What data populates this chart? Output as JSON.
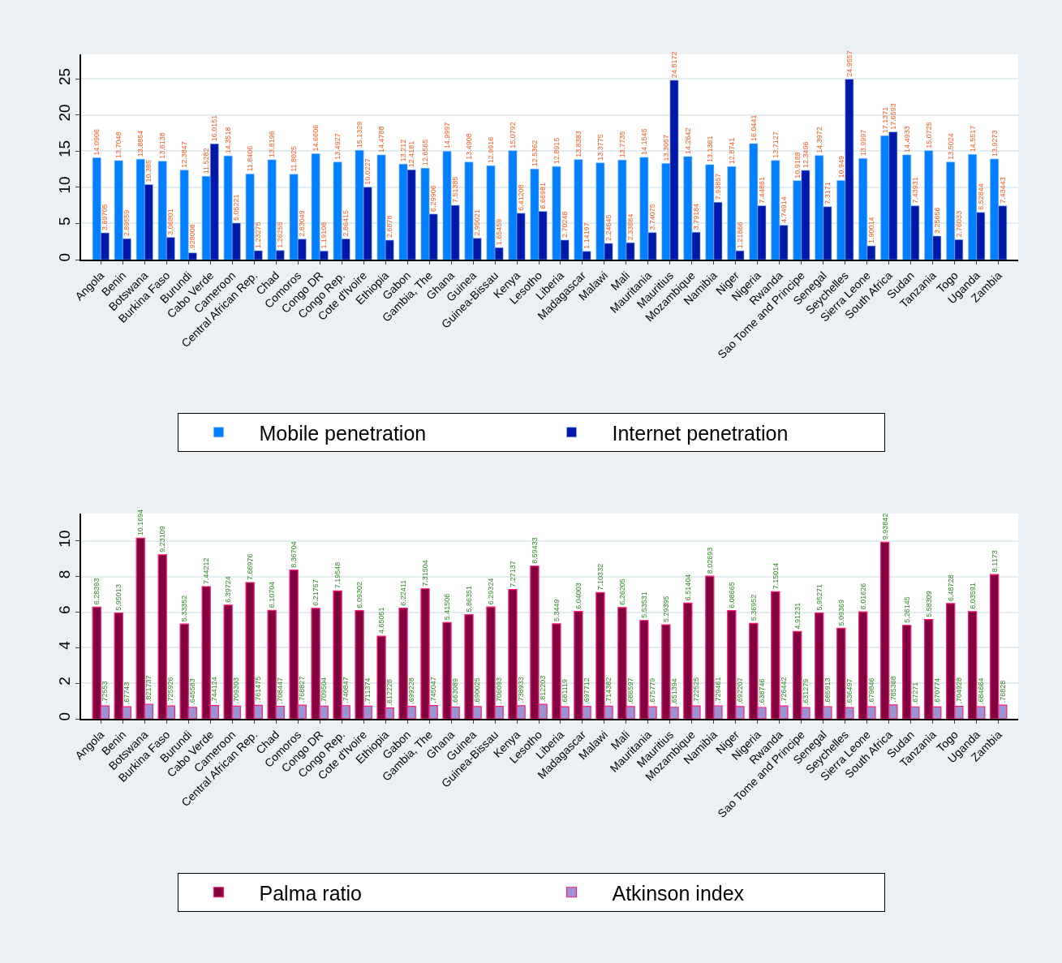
{
  "chart_data": [
    {
      "type": "bar",
      "categories": [
        "Angola",
        "Benin",
        "Botswana",
        "Burkina Faso",
        "Burundi",
        "Cabo Verde",
        "Cameroon",
        "Central African Rep.",
        "Chad",
        "Comoros",
        "Congo DR",
        "Congo Rep.",
        "Cote d'Ivoire",
        "Ethiopia",
        "Gabon",
        "Gambia, The",
        "Ghana",
        "Guinea",
        "Guinea-Bissau",
        "Kenya",
        "Lesotho",
        "Liberia",
        "Madagascar",
        "Malawi",
        "Mali",
        "Mauritania",
        "Mauritius",
        "Mozambique",
        "Namibia",
        "Niger",
        "Nigeria",
        "Rwanda",
        "Sao Tome and Principe",
        "Senegal",
        "Seychelles",
        "Sierra Leone",
        "South Africa",
        "Sudan",
        "Tanzania",
        "Togo",
        "Uganda",
        "Zambia"
      ],
      "series": [
        {
          "name": "Mobile penetration",
          "color": "#0080ff",
          "values": [
            14.0906,
            13.7048,
            13.8854,
            13.6138,
            12.3847,
            11.5282,
            14.3518,
            11.8406,
            13.8196,
            11.8025,
            14.6606,
            13.4927,
            15.1329,
            14.4788,
            13.212,
            12.6565,
            14.9997,
            13.4908,
            12.9916,
            15.0792,
            12.5362,
            12.8915,
            13.8383,
            13.3775,
            13.7735,
            14.1545,
            13.3057,
            14.2642,
            13.1361,
            12.8741,
            16.0441,
            13.7127,
            10.9188,
            14.3972,
            10.949,
            13.9997,
            17.1371,
            14.4933,
            15.0725,
            13.5024,
            14.5517,
            13.9273
          ]
        },
        {
          "name": "Internet penetration",
          "color": "#0018a8",
          "values": [
            3.69705,
            2.89559,
            10.385,
            3.06801,
            0.928008,
            16.0151,
            5.05221,
            1.23275,
            1.26255,
            2.83049,
            1.19108,
            2.86415,
            10.0227,
            2.6878,
            12.4181,
            6.29906,
            7.51385,
            2.95021,
            1.65459,
            6.41208,
            6.66981,
            2.70248,
            1.14197,
            2.24645,
            2.33884,
            3.74075,
            24.8172,
            3.79184,
            7.93857,
            1.21866,
            7.44861,
            4.74914,
            12.3496,
            7.3171,
            24.9557,
            1.90014,
            17.6593,
            7.43931,
            3.25656,
            2.76033,
            6.52844,
            7.43443
          ],
          "value_labels": [
            "3.69705",
            "2.89559",
            "10.385",
            "3.06801",
            ".928008",
            "16.0151",
            "5.05221",
            "1.23275",
            "1.26255",
            "2.83049",
            "1.19108",
            "2.86415",
            "10.0227",
            "2.6878",
            "12.4181",
            "6.29906",
            "7.51385",
            "2.95021",
            "1.65459",
            "6.41208",
            "6.66981",
            "2.70248",
            "1.14197",
            "2.24645",
            "2.33884",
            "3.74075",
            "24.8172",
            "3.79184",
            "7.93857",
            "1.21866",
            "7.44861",
            "4.74914",
            "12.3496",
            "7.3171",
            "24.9557",
            "1.90014",
            "17.6593",
            "7.43931",
            "3.25656",
            "2.76033",
            "6.52844",
            "7.43443"
          ]
        }
      ],
      "ylim": [
        0,
        28.4
      ],
      "yticks": [
        0,
        5,
        10,
        15,
        20,
        25
      ],
      "grid": "y",
      "legend": "bottom",
      "data_labels": true
    },
    {
      "type": "bar",
      "categories": [
        "Angola",
        "Benin",
        "Botswana",
        "Burkina Faso",
        "Burundi",
        "Cabo Verde",
        "Cameroon",
        "Central African Rep.",
        "Chad",
        "Comoros",
        "Congo DR",
        "Congo Rep.",
        "Cote d'Ivoire",
        "Ethiopia",
        "Gabon",
        "Gambia, The",
        "Ghana",
        "Guinea",
        "Guinea-Bissau",
        "Kenya",
        "Lesotho",
        "Liberia",
        "Madagascar",
        "Malawi",
        "Mali",
        "Mauritania",
        "Mauritius",
        "Mozambique",
        "Namibia",
        "Niger",
        "Nigeria",
        "Rwanda",
        "Sao Tome and Principe",
        "Senegal",
        "Seychelles",
        "Sierra Leone",
        "South Africa",
        "Sudan",
        "Tanzania",
        "Togo",
        "Uganda",
        "Zambia"
      ],
      "series": [
        {
          "name": "Palma ratio",
          "color": "#800040",
          "values": [
            6.28393,
            5.95013,
            10.1694,
            9.23109,
            5.33352,
            7.44212,
            6.39724,
            7.66976,
            6.10704,
            8.36704,
            6.21757,
            7.19548,
            6.09302,
            4.65051,
            6.22411,
            7.31504,
            5.41506,
            5.86351,
            6.29324,
            7.27137,
            8.59433,
            5.3449,
            6.04003,
            7.10332,
            6.26205,
            5.53531,
            5.29395,
            6.51404,
            8.02693,
            6.08665,
            5.36952,
            7.15014,
            4.91231,
            5.95271,
            5.09369,
            6.01626,
            9.93842,
            5.26145,
            5.58309,
            6.48728,
            6.03591,
            8.1173
          ]
        },
        {
          "name": "Atkinson index",
          "color": "#9a94d4",
          "values": [
            0.72553,
            0.67743,
            0.821737,
            0.725926,
            0.645583,
            0.744124,
            0.709303,
            0.761475,
            0.708447,
            0.768827,
            0.709504,
            0.740847,
            0.711374,
            0.612228,
            0.699228,
            0.745047,
            0.663089,
            0.690025,
            0.706093,
            0.738933,
            0.812203,
            0.681119,
            0.697712,
            0.714382,
            0.686597,
            0.675779,
            0.651394,
            0.722525,
            0.729461,
            0.692207,
            0.638746,
            0.726442,
            0.631279,
            0.685913,
            0.636497,
            0.679846,
            0.785368,
            0.67271,
            0.670774,
            0.704928,
            0.684664,
            0.76828
          ],
          "value_labels": [
            ".72553",
            ".67743",
            ".821737",
            ".725926",
            ".645583",
            ".744124",
            ".709303",
            ".761475",
            ".708447",
            ".768827",
            ".709504",
            ".740847",
            ".711374",
            ".612228",
            ".699228",
            ".745047",
            ".663089",
            ".690025",
            ".706093",
            ".738933",
            ".812203",
            ".681119",
            ".697712",
            ".714382",
            ".686597",
            ".675779",
            ".651394",
            ".722525",
            ".729461",
            ".692207",
            ".638746",
            ".726442",
            ".631279",
            ".685913",
            ".636497",
            ".679846",
            ".785368",
            ".67271",
            ".670774",
            ".704928",
            ".684664",
            ".76828"
          ]
        }
      ],
      "ylim": [
        0,
        11.55
      ],
      "yticks": [
        0,
        2,
        4,
        6,
        8,
        10
      ],
      "grid": "y",
      "legend": "bottom",
      "data_labels": true
    }
  ]
}
